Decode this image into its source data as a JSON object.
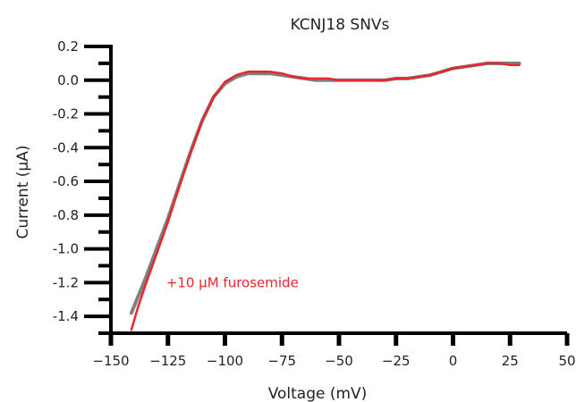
{
  "chart_data": {
    "type": "line",
    "title": "KCNJ18 SNVs",
    "xlabel": "Voltage (mV)",
    "ylabel": "Current (μA)",
    "xlim": [
      -150,
      50
    ],
    "ylim": [
      -1.5,
      0.2
    ],
    "x_ticks": [
      -150,
      -125,
      -100,
      -75,
      -50,
      -25,
      0,
      25,
      50
    ],
    "x_tick_labels": [
      "−150",
      "−125",
      "−100",
      "−75",
      "−50",
      "−25",
      "0",
      "25",
      "50"
    ],
    "y_ticks": [
      0.2,
      0.0,
      -0.2,
      -0.4,
      -0.6,
      -0.8,
      -1.0,
      -1.2,
      -1.4
    ],
    "y_tick_labels": [
      "0.2",
      "0.0",
      "-0.2",
      "-0.4",
      "-0.6",
      "-0.8",
      "-1.0",
      "-1.2",
      "-1.4"
    ],
    "grid": false,
    "colors": {
      "series_control": "#7f7f7f",
      "series_furosemide": "#e8262b",
      "axis": "#000000",
      "annotation": "#e8262b"
    },
    "series": [
      {
        "x": [
          -141,
          -138,
          -135,
          -130,
          -125,
          -120,
          -115,
          -110,
          -105,
          -100,
          -95,
          -90,
          -85,
          -80,
          -75,
          -70,
          -65,
          -60,
          -55,
          -50,
          -45,
          -40,
          -35,
          -30,
          -25,
          -20,
          -15,
          -10,
          -5,
          0,
          5,
          10,
          15,
          20,
          25,
          29
        ],
        "values": [
          -1.38,
          -1.28,
          -1.18,
          -1.0,
          -0.82,
          -0.62,
          -0.42,
          -0.24,
          -0.1,
          -0.02,
          0.02,
          0.04,
          0.04,
          0.04,
          0.03,
          0.02,
          0.01,
          0.0,
          0.0,
          0.0,
          0.0,
          0.0,
          0.0,
          0.0,
          0.01,
          0.01,
          0.02,
          0.03,
          0.05,
          0.07,
          0.08,
          0.09,
          0.1,
          0.1,
          0.1,
          0.1
        ]
      },
      {
        "x": [
          -141,
          -138,
          -135,
          -130,
          -125,
          -120,
          -115,
          -110,
          -105,
          -100,
          -95,
          -90,
          -85,
          -80,
          -75,
          -70,
          -65,
          -60,
          -55,
          -50,
          -45,
          -40,
          -35,
          -30,
          -25,
          -20,
          -15,
          -10,
          -5,
          0,
          5,
          10,
          15,
          20,
          25,
          29
        ],
        "values": [
          -1.48,
          -1.34,
          -1.22,
          -1.03,
          -0.84,
          -0.63,
          -0.43,
          -0.24,
          -0.1,
          -0.01,
          0.03,
          0.05,
          0.05,
          0.05,
          0.04,
          0.02,
          0.01,
          0.01,
          0.01,
          0.0,
          0.0,
          0.0,
          0.0,
          0.0,
          0.01,
          0.01,
          0.02,
          0.03,
          0.05,
          0.07,
          0.08,
          0.09,
          0.1,
          0.1,
          0.09,
          0.09
        ]
      }
    ],
    "annotations": [
      {
        "text": "+10 μM furosemide",
        "x": -125,
        "y": -1.2,
        "color": "#e8262b"
      }
    ]
  }
}
